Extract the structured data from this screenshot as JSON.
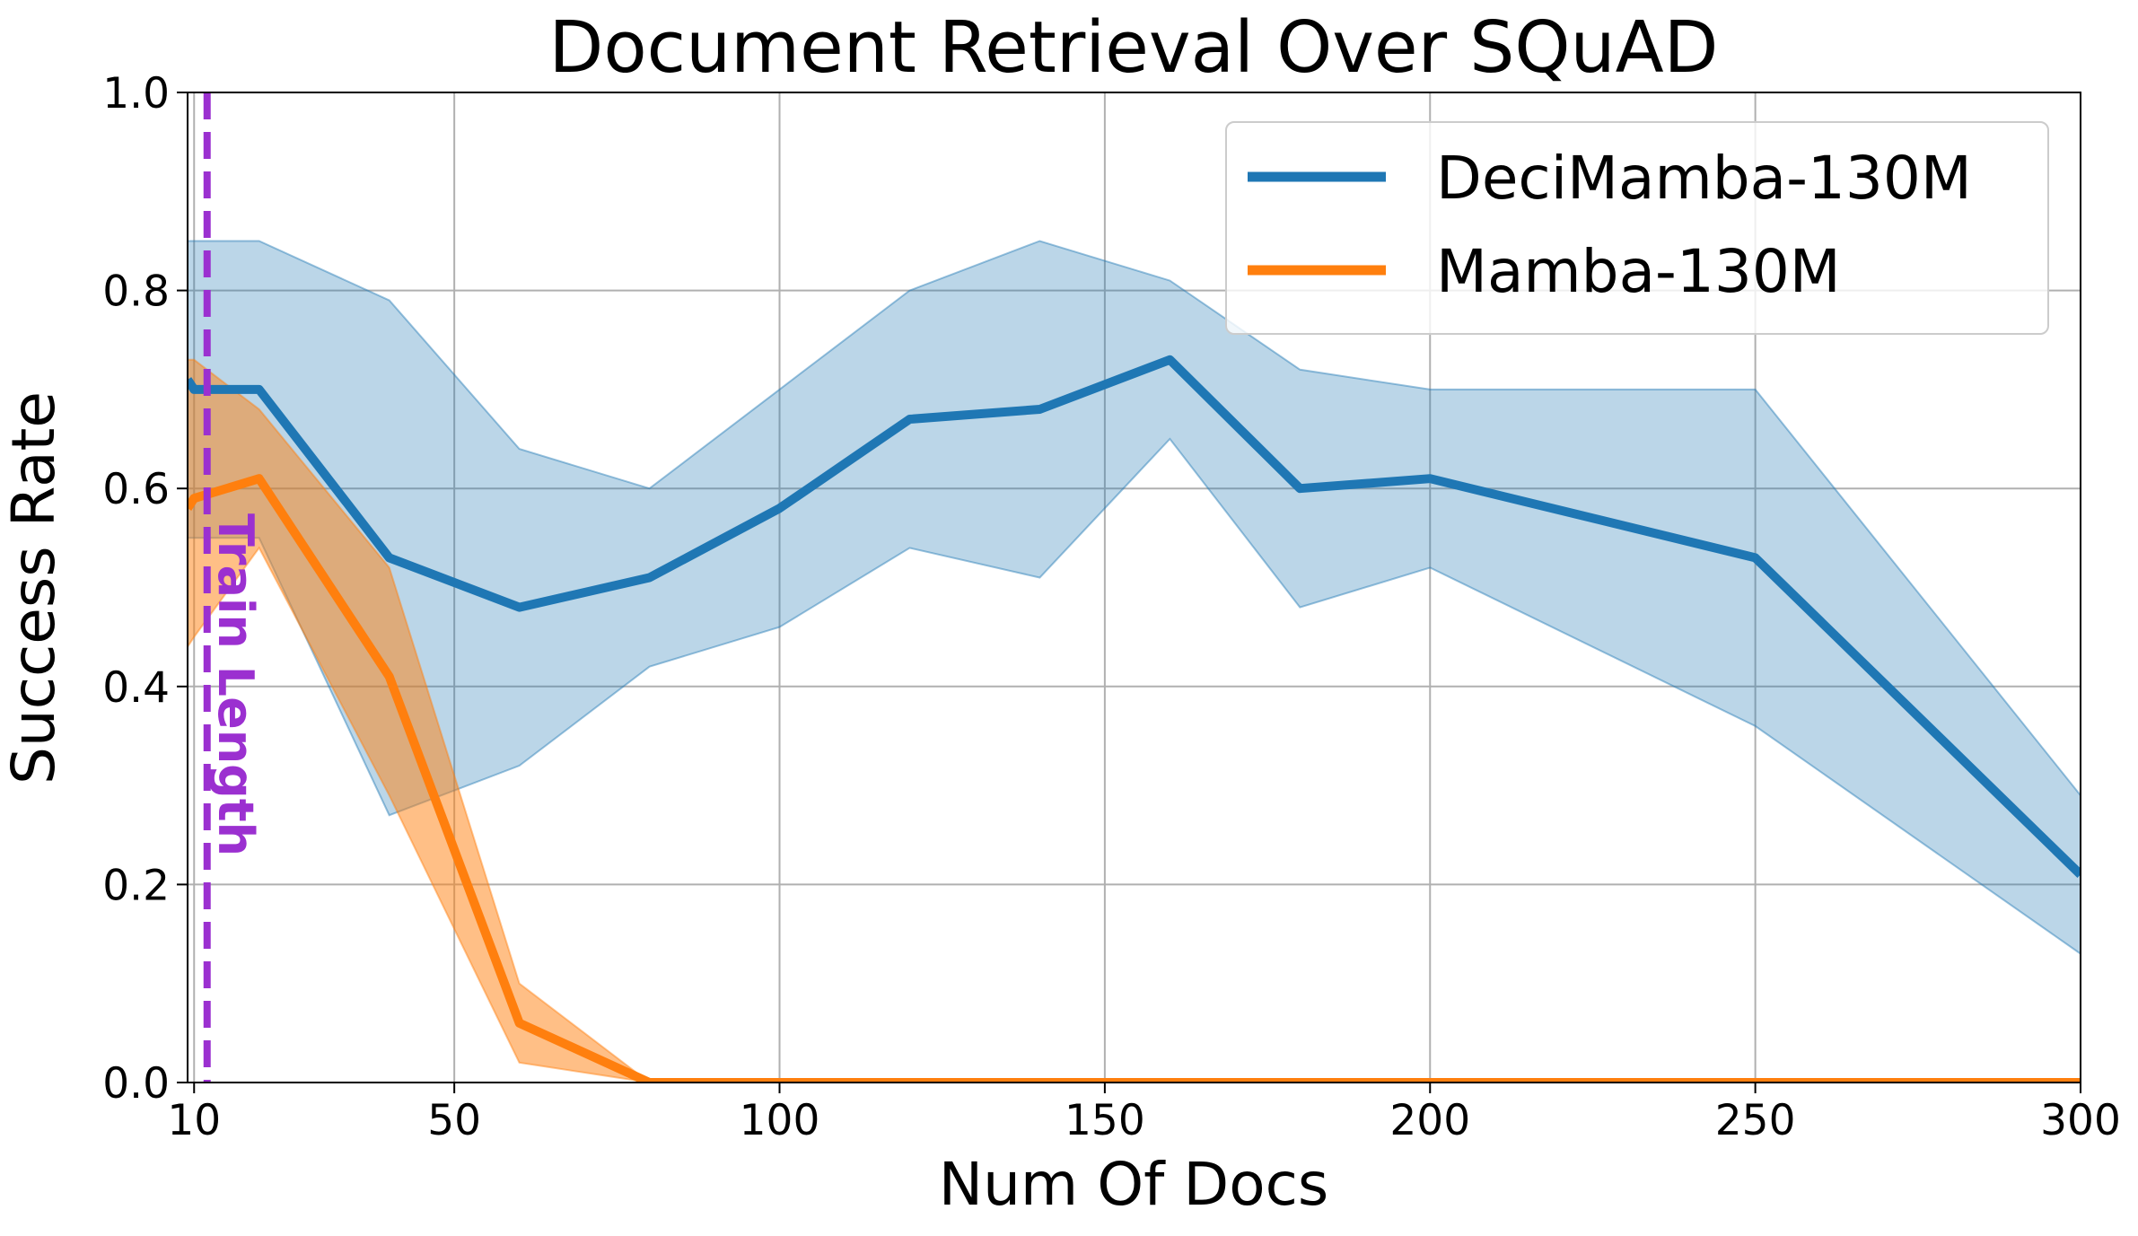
{
  "chart_data": {
    "type": "line",
    "title": "Document Retrieval Over SQuAD",
    "xlabel": "Num Of Docs",
    "ylabel": "Success Rate",
    "xlim": [
      9,
      300
    ],
    "ylim": [
      0.0,
      1.0
    ],
    "xticks": [
      10,
      50,
      100,
      150,
      200,
      250,
      300
    ],
    "yticks": [
      0.0,
      0.2,
      0.4,
      0.6,
      0.8,
      1.0
    ],
    "xtick_labels": [
      "10",
      "50",
      "100",
      "150",
      "200",
      "250",
      "300"
    ],
    "ytick_labels": [
      "0.0",
      "0.2",
      "0.4",
      "0.6",
      "0.8",
      "1.0"
    ],
    "grid": true,
    "legend_position": "top-right",
    "series": [
      {
        "name": "DeciMamba-130M",
        "color": "#1f77b4",
        "x": [
          9,
          10,
          20,
          40,
          60,
          80,
          100,
          120,
          140,
          160,
          180,
          200,
          250,
          300
        ],
        "y": [
          0.71,
          0.7,
          0.7,
          0.53,
          0.48,
          0.51,
          0.58,
          0.67,
          0.68,
          0.73,
          0.6,
          0.61,
          0.53,
          0.21
        ],
        "upper": [
          0.85,
          0.85,
          0.85,
          0.79,
          0.64,
          0.6,
          0.7,
          0.8,
          0.85,
          0.81,
          0.72,
          0.7,
          0.7,
          0.29
        ],
        "lower": [
          0.55,
          0.55,
          0.55,
          0.27,
          0.32,
          0.42,
          0.46,
          0.54,
          0.51,
          0.65,
          0.48,
          0.52,
          0.36,
          0.13
        ]
      },
      {
        "name": "Mamba-130M",
        "color": "#ff7f0e",
        "x": [
          9,
          10,
          20,
          40,
          60,
          80,
          100,
          120,
          140,
          160,
          180,
          200,
          250,
          300
        ],
        "y": [
          0.58,
          0.59,
          0.61,
          0.41,
          0.06,
          0.0,
          0.0,
          0.0,
          0.0,
          0.0,
          0.0,
          0.0,
          0.0,
          0.0
        ],
        "upper": [
          0.73,
          0.73,
          0.68,
          0.52,
          0.1,
          0.0,
          0.0,
          0.0,
          0.0,
          0.0,
          0.0,
          0.0,
          0.0,
          0.0
        ],
        "lower": [
          0.44,
          0.45,
          0.54,
          0.29,
          0.02,
          0.0,
          0.0,
          0.0,
          0.0,
          0.0,
          0.0,
          0.0,
          0.0,
          0.0
        ]
      }
    ],
    "annotations": [
      {
        "type": "vline",
        "x": 12,
        "style": "dashed",
        "color": "#9b30d0",
        "label": "Train Length"
      }
    ]
  }
}
